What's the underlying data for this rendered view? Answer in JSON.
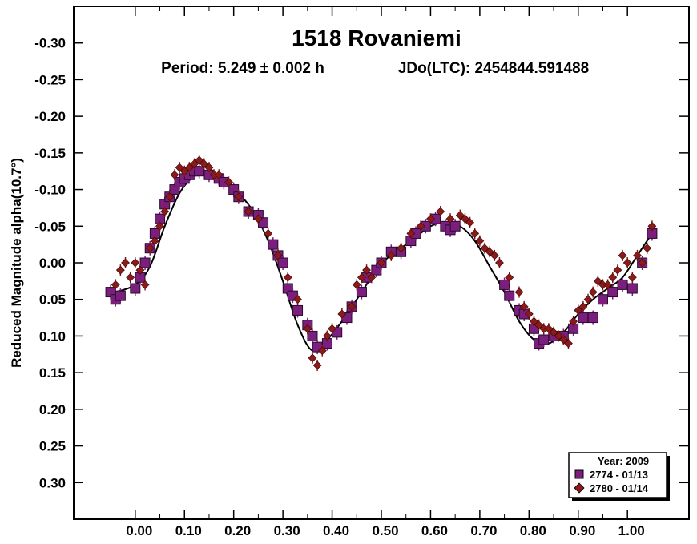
{
  "chart_data": {
    "type": "scatter",
    "title": "1518 Rovaniemi",
    "subtitle_period": "Period: 5.249 ± 0.002 h",
    "subtitle_jdo": "JDo(LTC): 2454844.591488",
    "xlabel": "",
    "ylabel": "Reduced Magnitude alpha(10.7°)",
    "xlim": [
      -0.125,
      1.125
    ],
    "ylim": [
      0.35,
      -0.35
    ],
    "y_inverted": true,
    "x_ticks": [
      0.0,
      0.1,
      0.2,
      0.3,
      0.4,
      0.5,
      0.6,
      0.7,
      0.8,
      0.9,
      1.0
    ],
    "x_tick_labels": [
      "0.00",
      "0.10",
      "0.20",
      "0.30",
      "0.40",
      "0.50",
      "0.60",
      "0.70",
      "0.80",
      "0.90",
      "1.00"
    ],
    "y_ticks": [
      -0.3,
      -0.25,
      -0.2,
      -0.15,
      -0.1,
      -0.05,
      0.0,
      0.05,
      0.1,
      0.15,
      0.2,
      0.25,
      0.3
    ],
    "y_tick_labels": [
      "-0.30",
      "-0.25",
      "-0.20",
      "-0.15",
      "-0.10",
      "-0.05",
      "0.00",
      "0.05",
      "0.10",
      "0.15",
      "0.20",
      "0.25",
      "0.30"
    ],
    "legend": {
      "title": "Year: 2009",
      "position": "bottom-right",
      "entries": [
        {
          "label": "2774 - 01/13",
          "marker": "square",
          "color": "#7b1f7f"
        },
        {
          "label": "2780 - 01/14",
          "marker": "diamond",
          "color": "#8b1a1a"
        }
      ]
    },
    "fit_curve": {
      "name": "fourier-fit",
      "x": [
        -0.04,
        0.0,
        0.03,
        0.06,
        0.09,
        0.12,
        0.15,
        0.18,
        0.21,
        0.24,
        0.27,
        0.3,
        0.33,
        0.36,
        0.39,
        0.42,
        0.45,
        0.48,
        0.51,
        0.54,
        0.57,
        0.6,
        0.63,
        0.66,
        0.69,
        0.72,
        0.75,
        0.78,
        0.81,
        0.84,
        0.87,
        0.9,
        0.93,
        0.96,
        0.99,
        1.02,
        1.05
      ],
      "y": [
        0.04,
        0.03,
        0.005,
        -0.05,
        -0.095,
        -0.118,
        -0.12,
        -0.115,
        -0.095,
        -0.07,
        -0.03,
        0.025,
        0.085,
        0.12,
        0.105,
        0.08,
        0.05,
        0.02,
        -0.005,
        -0.02,
        -0.035,
        -0.05,
        -0.055,
        -0.05,
        -0.03,
        0.005,
        0.04,
        0.08,
        0.105,
        0.11,
        0.095,
        0.07,
        0.05,
        0.035,
        0.02,
        -0.01,
        -0.04
      ]
    },
    "series": [
      {
        "name": "2774 - 01/13",
        "marker": "square",
        "color": "#7b1f7f",
        "x": [
          -0.05,
          -0.04,
          -0.03,
          0.0,
          0.01,
          0.02,
          0.03,
          0.04,
          0.05,
          0.06,
          0.07,
          0.08,
          0.09,
          0.1,
          0.11,
          0.12,
          0.13,
          0.15,
          0.17,
          0.18,
          0.2,
          0.21,
          0.23,
          0.25,
          0.26,
          0.28,
          0.29,
          0.3,
          0.31,
          0.32,
          0.33,
          0.35,
          0.36,
          0.37,
          0.39,
          0.41,
          0.43,
          0.44,
          0.46,
          0.47,
          0.49,
          0.5,
          0.52,
          0.54,
          0.56,
          0.57,
          0.59,
          0.61,
          0.63,
          0.64,
          0.65,
          0.75,
          0.76,
          0.78,
          0.79,
          0.81,
          0.82,
          0.83,
          0.85,
          0.87,
          0.89,
          0.91,
          0.93,
          0.95,
          0.97,
          0.99,
          1.01,
          1.03,
          1.05
        ],
        "y": [
          0.04,
          0.05,
          0.045,
          0.035,
          0.02,
          0.0,
          -0.02,
          -0.04,
          -0.06,
          -0.08,
          -0.09,
          -0.1,
          -0.11,
          -0.115,
          -0.12,
          -0.125,
          -0.125,
          -0.12,
          -0.115,
          -0.11,
          -0.1,
          -0.09,
          -0.07,
          -0.065,
          -0.055,
          -0.025,
          -0.01,
          0.0,
          0.035,
          0.045,
          0.065,
          0.085,
          0.1,
          0.115,
          0.11,
          0.095,
          0.075,
          0.06,
          0.04,
          0.02,
          0.01,
          0.0,
          -0.015,
          -0.015,
          -0.03,
          -0.04,
          -0.05,
          -0.06,
          -0.05,
          -0.045,
          -0.05,
          0.03,
          0.045,
          0.065,
          0.07,
          0.09,
          0.11,
          0.105,
          0.1,
          0.1,
          0.09,
          0.075,
          0.075,
          0.05,
          0.04,
          0.03,
          0.035,
          0.0,
          -0.04
        ]
      },
      {
        "name": "2780 - 01/14",
        "marker": "diamond",
        "color": "#8b1a1a",
        "x": [
          -0.04,
          -0.03,
          -0.02,
          -0.01,
          0.0,
          0.01,
          0.02,
          0.03,
          0.04,
          0.05,
          0.06,
          0.07,
          0.08,
          0.09,
          0.1,
          0.11,
          0.12,
          0.13,
          0.14,
          0.15,
          0.16,
          0.17,
          0.19,
          0.21,
          0.23,
          0.25,
          0.27,
          0.29,
          0.31,
          0.33,
          0.35,
          0.36,
          0.37,
          0.38,
          0.39,
          0.4,
          0.42,
          0.44,
          0.45,
          0.46,
          0.47,
          0.48,
          0.5,
          0.52,
          0.54,
          0.56,
          0.58,
          0.6,
          0.62,
          0.64,
          0.66,
          0.67,
          0.68,
          0.69,
          0.7,
          0.71,
          0.72,
          0.73,
          0.74,
          0.76,
          0.78,
          0.79,
          0.8,
          0.81,
          0.82,
          0.83,
          0.84,
          0.85,
          0.86,
          0.87,
          0.88,
          0.89,
          0.9,
          0.91,
          0.92,
          0.93,
          0.94,
          0.95,
          0.96,
          0.97,
          0.98,
          0.99,
          1.0,
          1.01,
          1.02,
          1.03,
          1.04,
          1.05
        ],
        "y": [
          0.03,
          0.01,
          0.0,
          0.02,
          0.0,
          0.01,
          0.03,
          -0.02,
          -0.03,
          -0.05,
          -0.07,
          -0.09,
          -0.12,
          -0.13,
          -0.125,
          -0.13,
          -0.135,
          -0.14,
          -0.135,
          -0.13,
          -0.12,
          -0.12,
          -0.11,
          -0.09,
          -0.07,
          -0.06,
          -0.04,
          -0.01,
          0.02,
          0.05,
          0.09,
          0.13,
          0.14,
          0.12,
          0.1,
          0.09,
          0.07,
          0.06,
          0.03,
          0.02,
          0.01,
          0.02,
          0.0,
          -0.01,
          -0.02,
          -0.04,
          -0.05,
          -0.06,
          -0.07,
          -0.06,
          -0.065,
          -0.06,
          -0.055,
          -0.04,
          -0.03,
          -0.02,
          -0.015,
          -0.01,
          0.0,
          0.02,
          0.04,
          0.06,
          0.07,
          0.08,
          0.085,
          0.09,
          0.09,
          0.095,
          0.1,
          0.105,
          0.11,
          0.08,
          0.065,
          0.06,
          0.05,
          0.04,
          0.025,
          0.03,
          0.03,
          0.02,
          0.01,
          -0.01,
          0.0,
          0.02,
          -0.01,
          0.0,
          -0.02,
          -0.05
        ]
      }
    ]
  }
}
